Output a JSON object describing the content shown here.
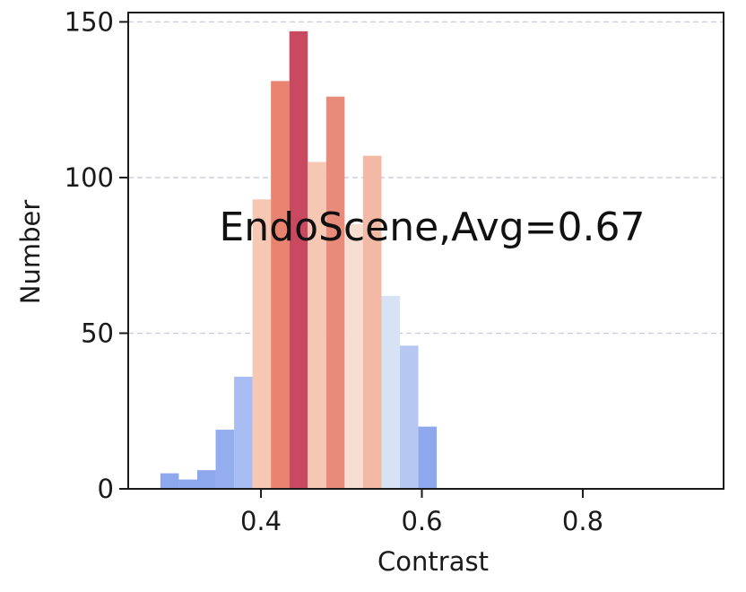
{
  "chart_data": {
    "type": "bar",
    "title": "",
    "xlabel": "Contrast",
    "ylabel": "Number",
    "annotation": "EndoScene,Avg=0.67",
    "xlim": [
      0.235,
      0.975
    ],
    "ylim": [
      0,
      153
    ],
    "xticks": [
      0.4,
      0.6,
      0.8
    ],
    "xtick_labels": [
      "0.4",
      "0.6",
      "0.8"
    ],
    "yticks": [
      0,
      50,
      100,
      150
    ],
    "ytick_labels": [
      "0",
      "50",
      "100",
      "150"
    ],
    "grid": {
      "axis": "y",
      "style": "dashed"
    },
    "bin_width": 0.0229,
    "bins": [
      {
        "x_start": 0.275,
        "value": 5,
        "color": "#8ea8ee"
      },
      {
        "x_start": 0.2979,
        "value": 3,
        "color": "#8ea8ee"
      },
      {
        "x_start": 0.3208,
        "value": 6,
        "color": "#8ea8ee"
      },
      {
        "x_start": 0.3437,
        "value": 19,
        "color": "#95aef0"
      },
      {
        "x_start": 0.3666,
        "value": 36,
        "color": "#a7bdf4"
      },
      {
        "x_start": 0.3895,
        "value": 93,
        "color": "#f6c8b4"
      },
      {
        "x_start": 0.4124,
        "value": 131,
        "color": "#e8836f"
      },
      {
        "x_start": 0.4353,
        "value": 147,
        "color": "#c94a60"
      },
      {
        "x_start": 0.4582,
        "value": 105,
        "color": "#f6c8b4"
      },
      {
        "x_start": 0.4811,
        "value": 126,
        "color": "#e88b7a"
      },
      {
        "x_start": 0.504,
        "value": 85,
        "color": "#f8ddd2"
      },
      {
        "x_start": 0.5269,
        "value": 107,
        "color": "#f4b9a4"
      },
      {
        "x_start": 0.5498,
        "value": 62,
        "color": "#d8e2f5"
      },
      {
        "x_start": 0.5727,
        "value": 46,
        "color": "#b6c7f2"
      },
      {
        "x_start": 0.5956,
        "value": 20,
        "color": "#8ea8ee"
      }
    ]
  }
}
